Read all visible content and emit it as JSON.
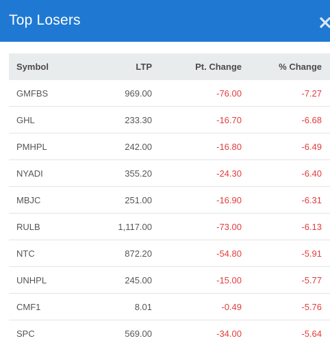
{
  "header": {
    "title": "Top Losers",
    "close_icon": "close-icon"
  },
  "colors": {
    "header_bg": "#1f79d2",
    "table_header_bg": "#e9eced",
    "negative": "#e23b3b"
  },
  "table": {
    "columns": [
      "Symbol",
      "LTP",
      "Pt. Change",
      "% Change"
    ],
    "rows": [
      {
        "symbol": "GMFBS",
        "ltp": "969.00",
        "pt_change": "-76.00",
        "pct_change": "-7.27"
      },
      {
        "symbol": "GHL",
        "ltp": "233.30",
        "pt_change": "-16.70",
        "pct_change": "-6.68"
      },
      {
        "symbol": "PMHPL",
        "ltp": "242.00",
        "pt_change": "-16.80",
        "pct_change": "-6.49"
      },
      {
        "symbol": "NYADI",
        "ltp": "355.20",
        "pt_change": "-24.30",
        "pct_change": "-6.40"
      },
      {
        "symbol": "MBJC",
        "ltp": "251.00",
        "pt_change": "-16.90",
        "pct_change": "-6.31"
      },
      {
        "symbol": "RULB",
        "ltp": "1,117.00",
        "pt_change": "-73.00",
        "pct_change": "-6.13"
      },
      {
        "symbol": "NTC",
        "ltp": "872.20",
        "pt_change": "-54.80",
        "pct_change": "-5.91"
      },
      {
        "symbol": "UNHPL",
        "ltp": "245.00",
        "pt_change": "-15.00",
        "pct_change": "-5.77"
      },
      {
        "symbol": "CMF1",
        "ltp": "8.01",
        "pt_change": "-0.49",
        "pct_change": "-5.76"
      },
      {
        "symbol": "SPC",
        "ltp": "569.00",
        "pt_change": "-34.00",
        "pct_change": "-5.64"
      }
    ]
  }
}
